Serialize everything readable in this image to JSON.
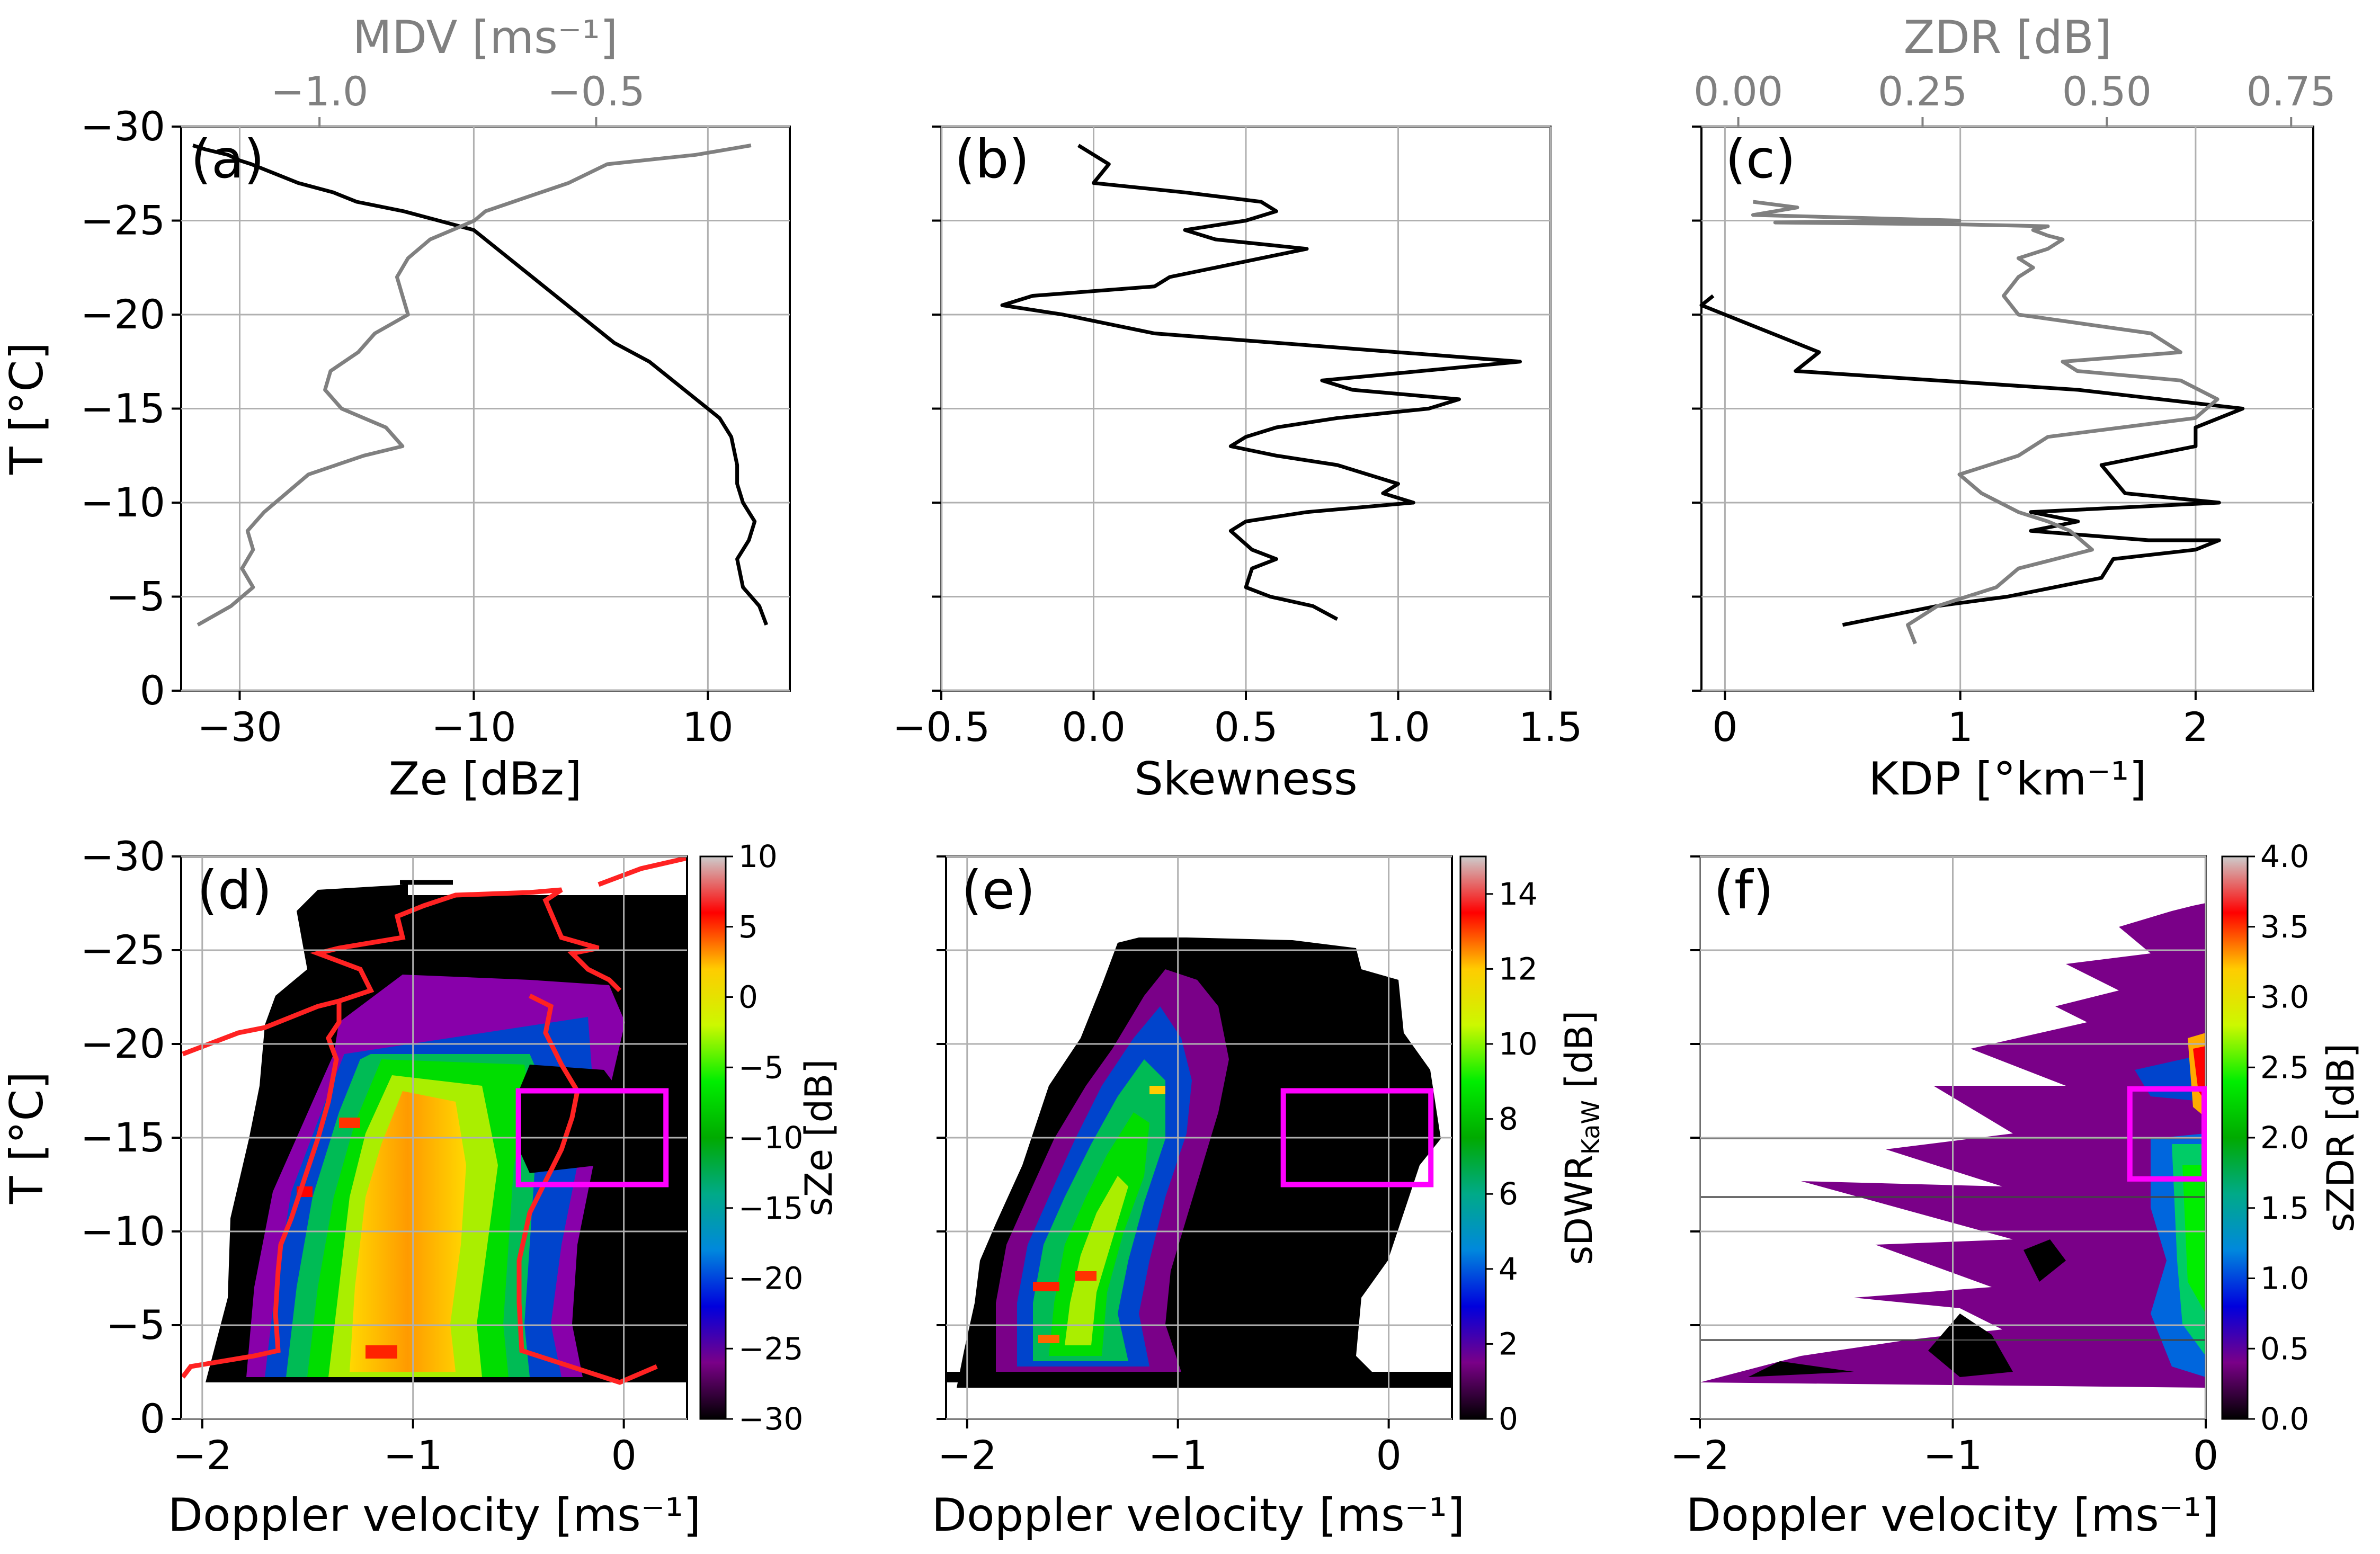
{
  "chart_data": [
    {
      "panel": "a",
      "type": "line",
      "panel_label": "(a)",
      "xlabel": "Ze [dBz]",
      "ylabel": "T [°C]",
      "xlim": [
        -35,
        17
      ],
      "ylim": [
        0,
        -30
      ],
      "xticks": [
        -30,
        -10,
        10
      ],
      "xtick_labels": [
        "−30",
        "−10",
        "10"
      ],
      "yticks": [
        0,
        -5,
        -10,
        -15,
        -20,
        -25,
        -30
      ],
      "ytick_labels": [
        "0",
        "−5",
        "−10",
        "−15",
        "−20",
        "−25",
        "−30"
      ],
      "top_axis": {
        "label": "MDV [ms⁻¹]",
        "lim": [
          -1.25,
          -0.15
        ],
        "ticks": [
          -1.0,
          -0.5
        ],
        "tick_labels": [
          "−1.0",
          "−0.5"
        ],
        "color": "#808080"
      },
      "grid": true,
      "series": [
        {
          "axis": "bottom",
          "color": "#000000",
          "x": [
            15,
            14.4,
            13,
            12.5,
            13.5,
            14,
            13,
            12.5,
            12.5,
            12,
            11,
            9,
            7,
            5,
            2,
            0,
            -2,
            -4,
            -6,
            -8,
            -10,
            -13,
            -16,
            -20,
            -22,
            -25,
            -27,
            -29,
            -30,
            -31,
            -33,
            -34
          ],
          "y": [
            -3.5,
            -4.5,
            -5.5,
            -7,
            -8,
            -9,
            -10,
            -11,
            -12,
            -13.5,
            -14.5,
            -15.5,
            -16.5,
            -17.5,
            -18.5,
            -19.5,
            -20.5,
            -21.5,
            -22.5,
            -23.5,
            -24.5,
            -25,
            -25.5,
            -26,
            -26.5,
            -27,
            -27.5,
            -28,
            -28.2,
            -28.5,
            -28.8,
            -29
          ]
        },
        {
          "axis": "top",
          "color": "#808080",
          "x": [
            -1.22,
            -1.16,
            -1.12,
            -1.14,
            -1.12,
            -1.13,
            -1.1,
            -1.06,
            -1.02,
            -0.92,
            -0.85,
            -0.88,
            -0.96,
            -0.99,
            -0.98,
            -0.93,
            -0.9,
            -0.84,
            -0.85,
            -0.86,
            -0.84,
            -0.8,
            -0.76,
            -0.72,
            -0.7,
            -0.65,
            -0.55,
            -0.48,
            -0.32,
            -0.22
          ],
          "y": [
            -3.5,
            -4.5,
            -5.5,
            -6.5,
            -7.5,
            -8.5,
            -9.5,
            -10.5,
            -11.5,
            -12.5,
            -13,
            -14,
            -15,
            -16,
            -17,
            -18,
            -19,
            -20,
            -21,
            -22,
            -23,
            -24,
            -24.5,
            -25,
            -25.5,
            -26,
            -27,
            -28,
            -28.5,
            -29
          ]
        }
      ]
    },
    {
      "panel": "b",
      "type": "line",
      "panel_label": "(b)",
      "xlabel": "Skewness",
      "xlim": [
        -0.5,
        1.5
      ],
      "xticks": [
        -0.5,
        0.0,
        0.5,
        1.0,
        1.5
      ],
      "xtick_labels": [
        "−0.5",
        "0.0",
        "0.5",
        "1.0",
        "1.5"
      ],
      "ylim": [
        0,
        -30
      ],
      "grid": true,
      "series": [
        {
          "color": "#000000",
          "x": [
            0.8,
            0.72,
            0.58,
            0.5,
            0.52,
            0.6,
            0.52,
            0.45,
            0.5,
            0.7,
            1.05,
            0.95,
            1.0,
            0.8,
            0.6,
            0.45,
            0.5,
            0.6,
            0.8,
            1.1,
            1.2,
            0.85,
            0.75,
            1.4,
            0.2,
            0.05,
            -0.1,
            -0.3,
            -0.2,
            0.2,
            0.25,
            0.4,
            0.7,
            0.4,
            0.3,
            0.5,
            0.6,
            0.55,
            0.3,
            0.0,
            0.05,
            -0.05
          ],
          "y": [
            -3.8,
            -4.5,
            -5,
            -5.5,
            -6.5,
            -7,
            -7.5,
            -8.5,
            -9,
            -9.5,
            -10,
            -10.5,
            -11,
            -12,
            -12.5,
            -13,
            -13.5,
            -14,
            -14.5,
            -15,
            -15.5,
            -16,
            -16.5,
            -17.5,
            -19,
            -19.5,
            -20,
            -20.5,
            -21,
            -21.5,
            -22,
            -22.5,
            -23.5,
            -24,
            -24.5,
            -25,
            -25.5,
            -26,
            -26.5,
            -27,
            -28,
            -29
          ]
        }
      ]
    },
    {
      "panel": "c",
      "type": "line",
      "panel_label": "(c)",
      "xlabel": "KDP [°km⁻¹]",
      "xlim": [
        -0.1,
        2.5
      ],
      "xticks": [
        0,
        1,
        2
      ],
      "xtick_labels": [
        "0",
        "1",
        "2"
      ],
      "ylim": [
        0,
        -30
      ],
      "top_axis": {
        "label": "ZDR [dB]",
        "lim": [
          -0.05,
          0.78
        ],
        "ticks": [
          0.0,
          0.25,
          0.5,
          0.75
        ],
        "tick_labels": [
          "0.00",
          "0.25",
          "0.50",
          "0.75"
        ],
        "color": "#808080"
      },
      "grid": true,
      "series": [
        {
          "axis": "bottom",
          "color": "#000000",
          "x": [
            0.5,
            0.9,
            1.2,
            1.6,
            1.65,
            2.0,
            2.1,
            1.8,
            1.3,
            1.5,
            1.3,
            2.1,
            1.7,
            1.6,
            2.0,
            2.0,
            2.2,
            1.5,
            0.3,
            0.4,
            0.2,
            0.1,
            0.0,
            -0.1,
            -0.05
          ],
          "y": [
            -3.5,
            -4.5,
            -5,
            -6,
            -7,
            -7.5,
            -8,
            -8,
            -8.5,
            -9,
            -9.5,
            -10,
            -10.5,
            -12,
            -13,
            -14,
            -15,
            -16,
            -17,
            -18,
            -19,
            -19.5,
            -20,
            -20.5,
            -21
          ]
        },
        {
          "axis": "top",
          "color": "#808080",
          "x": [
            0.24,
            0.23,
            0.25,
            0.27,
            0.35,
            0.38,
            0.48,
            0.45,
            0.42,
            0.38,
            0.33,
            0.3,
            0.38,
            0.42,
            0.62,
            0.65,
            0.6,
            0.46,
            0.44,
            0.6,
            0.56,
            0.38,
            0.36,
            0.37,
            0.38,
            0.4,
            0.38,
            0.42,
            0.44,
            0.42,
            0.4,
            0.42,
            0.3,
            0.05,
            0.3,
            0.02,
            0.08,
            0.02
          ],
          "y": [
            -2.5,
            -3.5,
            -4,
            -4.5,
            -5.5,
            -6.5,
            -7.5,
            -8.5,
            -9,
            -9.5,
            -10.5,
            -11.5,
            -12.5,
            -13.5,
            -14.5,
            -15.5,
            -16.5,
            -17,
            -17.5,
            -18,
            -19,
            -20,
            -21,
            -21.5,
            -22,
            -22.5,
            -23,
            -23.5,
            -24,
            -24.2,
            -24.5,
            -24.7,
            -24.8,
            -24.9,
            -25,
            -25.3,
            -25.7,
            -26
          ]
        }
      ]
    },
    {
      "panel": "d",
      "type": "heatmap",
      "panel_label": "(d)",
      "xlabel": "Doppler velocity [ms⁻¹]",
      "ylabel": "T [°C]",
      "xlim": [
        -2.1,
        0.3
      ],
      "ylim": [
        0,
        -30
      ],
      "xticks": [
        -2,
        -1,
        0
      ],
      "xtick_labels": [
        "−2",
        "−1",
        "0"
      ],
      "yticks": [
        0,
        -5,
        -10,
        -15,
        -20,
        -25,
        -30
      ],
      "ytick_labels": [
        "0",
        "−5",
        "−10",
        "−15",
        "−20",
        "−25",
        "−30"
      ],
      "grid": true,
      "colorbar": {
        "label": "sZe [dB]",
        "lim": [
          -30,
          10
        ],
        "ticks": [
          10,
          5,
          0,
          -5,
          -10,
          -15,
          -20,
          -25,
          -30
        ],
        "tick_labels": [
          "10",
          "5",
          "0",
          "−5",
          "−10",
          "−15",
          "−20",
          "−25",
          "−30"
        ],
        "colormap": "nipy_spectral"
      },
      "highlight_box": {
        "x": [
          -0.5,
          0.2
        ],
        "y": [
          -12.5,
          -17.5
        ],
        "color": "#ff00ff"
      }
    },
    {
      "panel": "e",
      "type": "heatmap",
      "panel_label": "(e)",
      "xlabel": "Doppler velocity [ms⁻¹]",
      "xlim": [
        -2.1,
        0.3
      ],
      "ylim": [
        0,
        -30
      ],
      "xticks": [
        -2,
        -1,
        0
      ],
      "xtick_labels": [
        "−2",
        "−1",
        "0"
      ],
      "grid": true,
      "colorbar": {
        "label": "sDWR",
        "label_sub": "KaW",
        "label_unit": " [dB]",
        "lim": [
          0,
          15
        ],
        "ticks": [
          14,
          12,
          10,
          8,
          6,
          4,
          2,
          0
        ],
        "tick_labels": [
          "14",
          "12",
          "10",
          "8",
          "6",
          "4",
          "2",
          "0"
        ],
        "colormap": "nipy_spectral"
      },
      "highlight_box": {
        "x": [
          -0.5,
          0.2
        ],
        "y": [
          -12.5,
          -17.5
        ],
        "color": "#ff00ff"
      }
    },
    {
      "panel": "f",
      "type": "heatmap",
      "panel_label": "(f)",
      "xlabel": "Doppler velocity [ms⁻¹]",
      "xlim": [
        -2.0,
        0.0
      ],
      "ylim": [
        0,
        -30
      ],
      "xticks": [
        -2,
        -1,
        0
      ],
      "xtick_labels": [
        "−2",
        "−1",
        "0"
      ],
      "grid": true,
      "colorbar": {
        "label": "sZDR [dB]",
        "lim": [
          0,
          4
        ],
        "ticks": [
          4.0,
          3.5,
          3.0,
          2.5,
          2.0,
          1.5,
          1.0,
          0.5,
          0.0
        ],
        "tick_labels": [
          "4.0",
          "3.5",
          "3.0",
          "2.5",
          "2.0",
          "1.5",
          "1.0",
          "0.5",
          "0.0"
        ],
        "colormap": "nipy_spectral"
      },
      "highlight_box": {
        "x": [
          -0.3,
          0.0
        ],
        "y": [
          -12.8,
          -17.6
        ],
        "color": "#ff00ff"
      }
    }
  ]
}
